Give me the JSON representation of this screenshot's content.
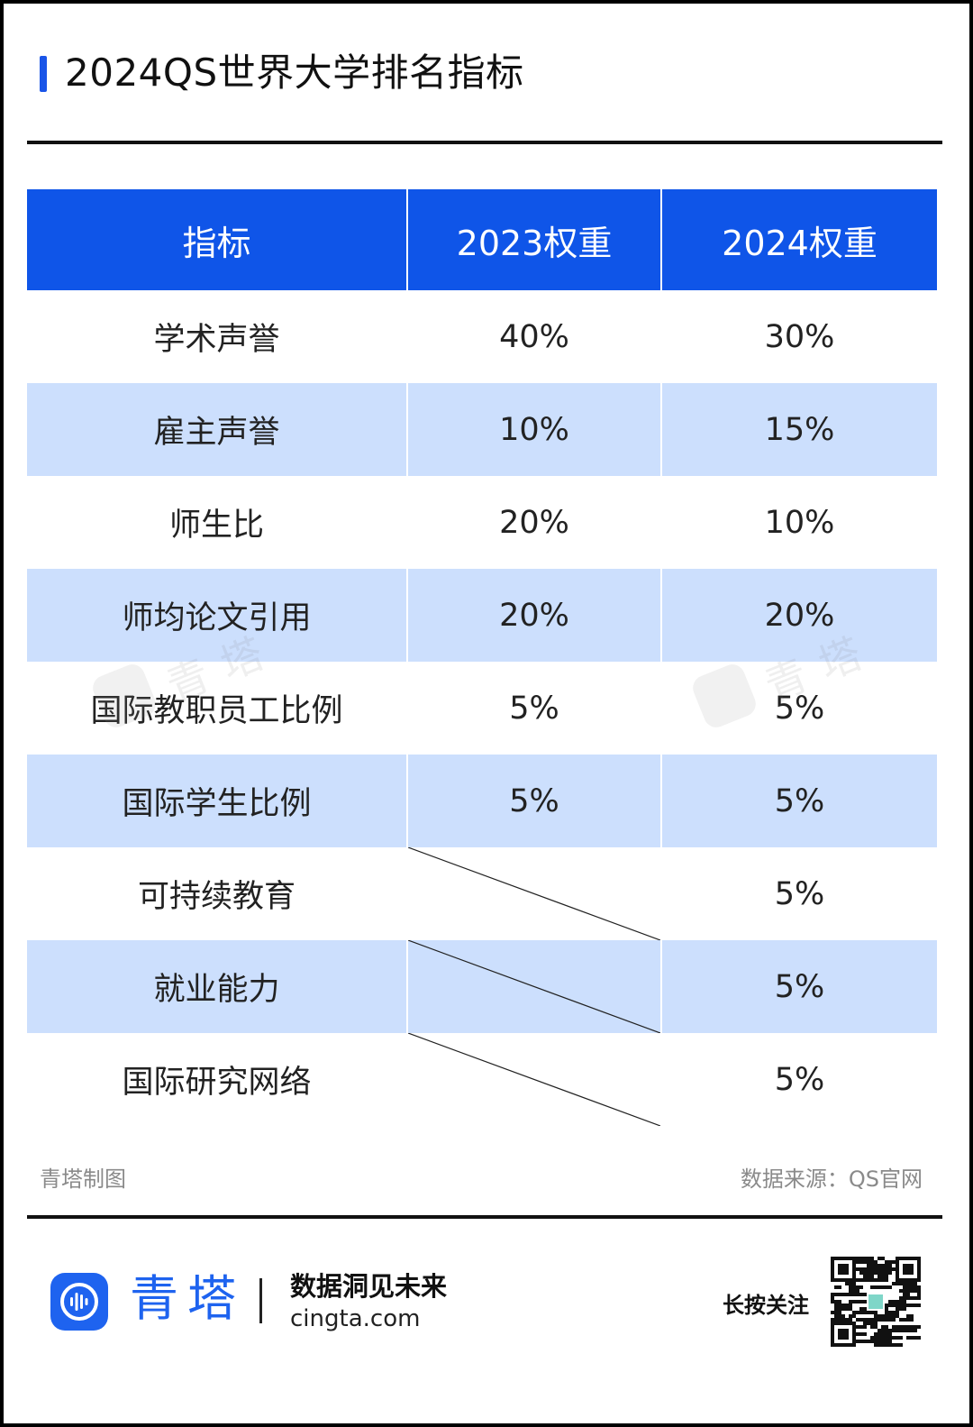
{
  "title": "2024QS世界大学排名指标",
  "chart_data": {
    "type": "table",
    "columns": [
      "指标",
      "2023权重",
      "2024权重"
    ],
    "rows": [
      {
        "indicator": "学术声誉",
        "w2023": "40%",
        "w2024": "30%"
      },
      {
        "indicator": "雇主声誉",
        "w2023": "10%",
        "w2024": "15%"
      },
      {
        "indicator": "师生比",
        "w2023": "20%",
        "w2024": "10%"
      },
      {
        "indicator": "师均论文引用",
        "w2023": "20%",
        "w2024": "20%"
      },
      {
        "indicator": "国际教职员工比例",
        "w2023": "5%",
        "w2024": "5%"
      },
      {
        "indicator": "国际学生比例",
        "w2023": "5%",
        "w2024": "5%"
      },
      {
        "indicator": "可持续教育",
        "w2023": null,
        "w2024": "5%"
      },
      {
        "indicator": "就业能力",
        "w2023": null,
        "w2024": "5%"
      },
      {
        "indicator": "国际研究网络",
        "w2023": null,
        "w2024": "5%"
      }
    ]
  },
  "watermark_text": "青塔",
  "footer": {
    "credit": "青塔制图",
    "source": "数据来源：QS官网"
  },
  "brand": {
    "name": "青塔",
    "slogan": "数据洞见未来",
    "site": "cingta.com",
    "follow": "长按关注"
  },
  "colors": {
    "header_blue": "#0f55e8",
    "stripe_blue": "#ccdffd",
    "brand_blue": "#1e63ef"
  },
  "icons": {
    "logo": "cingta-logo-icon",
    "qr": "qr-code-icon"
  }
}
